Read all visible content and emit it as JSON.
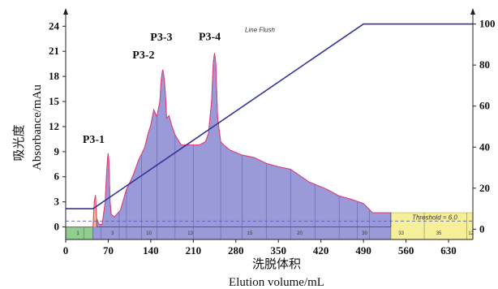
{
  "chart_data": {
    "type": "area",
    "xlabel": "洗脱体积",
    "xlabel_en": "Elution volume/mL",
    "ylabel": "吸光度",
    "ylabel_en": "Absorbance/mAu",
    "xlim": [
      0,
      670
    ],
    "ylim": [
      -1.5,
      25
    ],
    "y2lim": [
      -5,
      103
    ],
    "x_ticks": [
      0,
      70,
      140,
      210,
      280,
      350,
      420,
      490,
      560,
      630
    ],
    "y_ticks": [
      0,
      3,
      6,
      9,
      12,
      15,
      18,
      21,
      24
    ],
    "y2_ticks": [
      0,
      20,
      40,
      60,
      80,
      100
    ],
    "peak_labels": [
      {
        "text": "P3-1",
        "x": 70,
        "y": 8.7
      },
      {
        "text": "P3-2",
        "x": 160,
        "y": 18.8
      },
      {
        "text": "P3-3",
        "x": 160,
        "y": 18.8
      },
      {
        "text": "P3-4",
        "x": 245,
        "y": 20.8
      }
    ],
    "annotations": {
      "line_flush": "Line Flush",
      "threshold": "Threshold = 6.0"
    },
    "colors": {
      "purple_fill": "#9b9ad8",
      "purple_edge": "#4a4a96",
      "green_fill": "#8fce8f",
      "yellow_fill": "#f5ef9a",
      "orange_fill": "#f4b88a",
      "trace": "#e0407a",
      "gradient": "#33349a",
      "threshold": "#5a5ab8"
    },
    "series": [
      {
        "name": "absorbance",
        "x": [
          0,
          45,
          47,
          49,
          51,
          55,
          60,
          65,
          67,
          69,
          70,
          71,
          73,
          75,
          80,
          90,
          100,
          110,
          120,
          130,
          135,
          140,
          145,
          150,
          155,
          157,
          159,
          160,
          162,
          164,
          166,
          170,
          175,
          180,
          190,
          200,
          210,
          220,
          230,
          235,
          240,
          243,
          245,
          247,
          250,
          255,
          260,
          270,
          290,
          310,
          330,
          350,
          370,
          400,
          430,
          450,
          470,
          490,
          505,
          515,
          535
        ],
        "values": [
          0,
          0,
          3,
          3.8,
          1,
          0.3,
          0.3,
          3,
          6,
          8.3,
          8.8,
          8,
          3,
          1.5,
          1.2,
          2,
          4.5,
          6,
          8,
          9.5,
          11,
          12.2,
          14,
          13.2,
          15,
          17.5,
          18.6,
          18.8,
          17.8,
          16,
          13,
          13.3,
          12,
          11,
          9.8,
          9.8,
          9.8,
          9.8,
          10.2,
          11.2,
          15,
          19.8,
          20.8,
          19.5,
          13,
          10.2,
          9.8,
          9.2,
          8.6,
          8.3,
          7.6,
          7.2,
          6.9,
          5.4,
          4.5,
          3.7,
          3.3,
          2.8,
          1.7,
          1.7,
          1.7
        ]
      },
      {
        "name": "gradient",
        "axis": "right",
        "x": [
          0,
          45,
          490,
          670
        ],
        "values": [
          10,
          10,
          100,
          100
        ]
      }
    ],
    "fraction_boundaries": [
      58,
      88,
      100,
      125,
      150,
      180,
      210,
      255,
      290,
      330,
      370,
      410,
      450,
      480,
      500,
      535,
      590,
      660
    ],
    "fraction_numbers": [
      {
        "text": "1",
        "x": 20
      },
      {
        "text": "3",
        "x": 77
      },
      {
        "text": "10",
        "x": 137
      },
      {
        "text": "13",
        "x": 205
      },
      {
        "text": "15",
        "x": 303
      },
      {
        "text": "20",
        "x": 385
      },
      {
        "text": "30",
        "x": 492
      },
      {
        "text": "33",
        "x": 552
      },
      {
        "text": "35",
        "x": 614
      },
      {
        "text": "12",
        "x": 667
      }
    ]
  }
}
